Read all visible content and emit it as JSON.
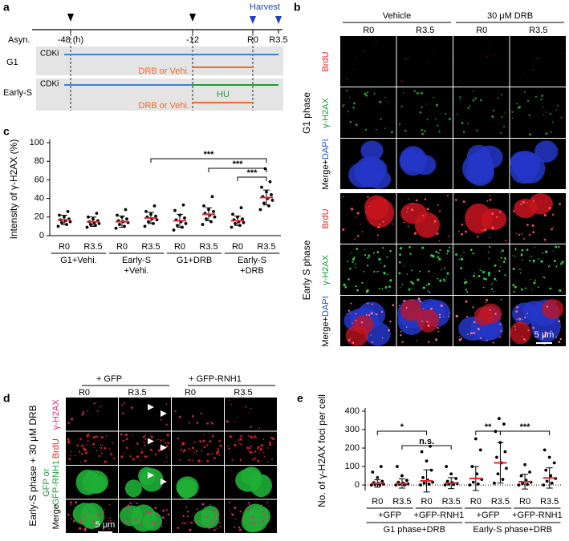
{
  "figure": {
    "a": {
      "label": "a",
      "harvest": "Harvest",
      "axis_label": "Asyn.",
      "times": [
        "-48 (h)",
        "-12",
        "R0",
        "R3.5"
      ],
      "rows": [
        {
          "name": "G1",
          "drug": "CDKi",
          "treatment": "DRB or Vehi."
        },
        {
          "name": "Early-S",
          "drug": "CDKi",
          "arrest": "HU",
          "treatment": "DRB or Vehi."
        }
      ]
    },
    "b": {
      "label": "b",
      "conditions": [
        "Vehicle",
        "30 μM DRB"
      ],
      "timepoints": [
        "R0",
        "R3.5",
        "R0",
        "R3.5"
      ],
      "phases": [
        {
          "name": "G1 phase",
          "channels": [
            "BrdU",
            "γ-H2AX",
            {
              "merge": "Merge+",
              "dapi": "DAPI"
            }
          ]
        },
        {
          "name": "Early S phase",
          "channels": [
            "BrdU",
            "γ-H2AX",
            {
              "merge": "Merge+",
              "dapi": "DAPI"
            }
          ]
        }
      ],
      "scale_bar": "5 μm"
    },
    "d": {
      "label": "d",
      "side_label": "Early-S phase + 30 μM DRB",
      "conditions": [
        "+ GFP",
        "+ GFP-RNH1"
      ],
      "timepoints": [
        "R0",
        "R3.5",
        "R0",
        "R3.5"
      ],
      "channels": [
        [
          "γ-H2AX"
        ],
        [
          "BrdU"
        ],
        [
          "GFP or",
          "GFP-RNH1"
        ],
        [
          "Merge"
        ]
      ],
      "scale_bar": "5 μm"
    }
  },
  "chart_data": [
    {
      "type": "dot",
      "panel": "c",
      "ylabel": "Intensity of γ-H2AX (%)",
      "categories": [
        "R0",
        "R3.5",
        "R0",
        "R3.5",
        "R0",
        "R3.5",
        "R0",
        "R3.5"
      ],
      "groups": [
        [
          "G1+Vehi."
        ],
        [
          "Early-S",
          "+Vehi."
        ],
        [
          "G1+DRB"
        ],
        [
          "Early-S",
          "+DRB"
        ]
      ],
      "values": [
        [
          10,
          12,
          14,
          15,
          16,
          17,
          18,
          20,
          22,
          26
        ],
        [
          9,
          11,
          12,
          13,
          14,
          15,
          16,
          18,
          20,
          24
        ],
        [
          8,
          10,
          12,
          14,
          15,
          16,
          18,
          20,
          22,
          28
        ],
        [
          10,
          13,
          15,
          17,
          18,
          20,
          21,
          23,
          26,
          32
        ],
        [
          6,
          9,
          11,
          13,
          15,
          17,
          19,
          22,
          27,
          33
        ],
        [
          12,
          15,
          18,
          20,
          22,
          24,
          26,
          28,
          32,
          42
        ],
        [
          9,
          11,
          13,
          14,
          15,
          17,
          18,
          20,
          23,
          30
        ],
        [
          28,
          32,
          35,
          38,
          40,
          42,
          44,
          47,
          52,
          58,
          72
        ]
      ],
      "means": [
        17,
        15,
        15,
        19,
        16,
        23,
        16,
        41
      ],
      "errors": [
        5,
        5,
        6,
        6,
        7,
        7,
        5,
        8
      ],
      "significance": [
        "***",
        "***",
        "***"
      ],
      "ylim": [
        0,
        100
      ],
      "yticks": [
        0,
        20,
        40,
        60,
        80,
        100
      ],
      "point_color": "#000000",
      "mean_color": "#e8202a"
    },
    {
      "type": "dot",
      "panel": "e",
      "ylabel": "No. of γ-H2AX foci per cell",
      "categories": [
        "R0",
        "R3.5",
        "R0",
        "R3.5",
        "R0",
        "R3.5",
        "R0",
        "R3.5"
      ],
      "subgroups": [
        "+GFP",
        "+GFP-RNH1",
        "+GFP",
        "+GFP-RNH1"
      ],
      "groups": [
        [
          "G1 phase+DRB"
        ],
        [
          "Early-S phase+DRB"
        ]
      ],
      "values": [
        [
          0,
          0,
          2,
          5,
          8,
          12,
          20,
          40,
          70,
          100
        ],
        [
          0,
          0,
          3,
          6,
          10,
          15,
          25,
          50,
          100
        ],
        [
          0,
          5,
          10,
          15,
          25,
          40,
          80,
          130,
          180,
          210
        ],
        [
          0,
          2,
          5,
          8,
          12,
          20,
          35,
          60,
          100
        ],
        [
          0,
          5,
          15,
          30,
          60,
          100,
          190,
          250
        ],
        [
          10,
          30,
          60,
          90,
          120,
          150,
          180,
          230,
          290,
          330,
          360
        ],
        [
          0,
          3,
          8,
          15,
          25,
          50,
          70,
          110
        ],
        [
          0,
          10,
          20,
          35,
          50,
          80,
          120,
          150,
          190
        ]
      ],
      "means": [
        8,
        8,
        22,
        10,
        35,
        120,
        18,
        38
      ],
      "errors": [
        20,
        25,
        60,
        30,
        65,
        110,
        40,
        55
      ],
      "significance": [
        "*",
        "n.s.",
        "**",
        "***"
      ],
      "ylim": [
        -30,
        400
      ],
      "yticks": [
        0,
        100,
        200,
        300,
        400
      ],
      "point_color": "#000000",
      "mean_color": "#e8202a"
    }
  ]
}
